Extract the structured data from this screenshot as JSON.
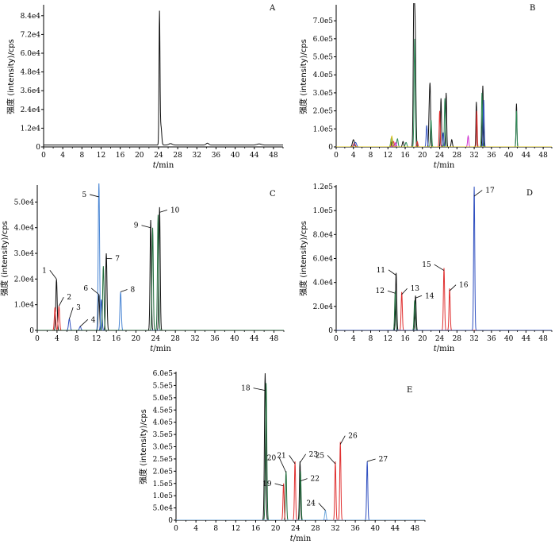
{
  "figure": {
    "ylabel": "强度 (intensity)/cps",
    "xlabel_italic": "t",
    "xlabel_rest": "/min"
  },
  "chart_data": [
    {
      "panel": "A",
      "type": "line",
      "title": "A",
      "xlabel": "t/min",
      "ylabel": "强度 (intensity)/cps",
      "xlim": [
        0,
        50
      ],
      "ylim": [
        0,
        90000
      ],
      "xticks": [
        0,
        4,
        8,
        12,
        16,
        20,
        24,
        28,
        32,
        36,
        40,
        44,
        48
      ],
      "yticks": [
        0,
        12000,
        24000,
        36000,
        48000,
        60000,
        72000,
        84000
      ],
      "ytick_labels": [
        "0",
        "1.2e4",
        "2.4e4",
        "3.6e4",
        "4.8e4",
        "6.0e4",
        "7.2e4",
        "8.4e4"
      ],
      "baseline": 1200,
      "series": [
        {
          "name": "black",
          "color": "#111111",
          "peaks": [
            [
              24.2,
              84000,
              0.22
            ],
            [
              24.5,
              12000,
              0.35
            ],
            [
              26.5,
              900,
              0.8
            ],
            [
              34.2,
              1200,
              0.6
            ],
            [
              45,
              700,
              1.0
            ]
          ]
        }
      ],
      "peak_labels": []
    },
    {
      "panel": "B",
      "type": "line",
      "title": "B",
      "xlabel": "t/min",
      "ylabel": "强度 (intensity)/cps",
      "xlim": [
        0,
        50
      ],
      "ylim": [
        0,
        780000
      ],
      "xticks": [
        0,
        4,
        8,
        12,
        16,
        20,
        24,
        28,
        32,
        36,
        40,
        44,
        48
      ],
      "yticks": [
        0,
        100000,
        200000,
        300000,
        400000,
        500000,
        600000,
        700000
      ],
      "ytick_labels": [
        "0",
        "1.0e5",
        "2.0e5",
        "3.0e5",
        "4.0e5",
        "5.0e5",
        "6.0e5",
        "7.0e5"
      ],
      "baseline": 0,
      "series": [
        {
          "name": "black",
          "color": "#111111",
          "peaks": [
            [
              4.0,
              40000,
              0.5
            ],
            [
              13.0,
              35000,
              0.35
            ],
            [
              15.5,
              30000,
              0.35
            ],
            [
              18.0,
              760000,
              0.3
            ],
            [
              18.3,
              650000,
              0.35
            ],
            [
              21.8,
              260000,
              0.25
            ],
            [
              21.6,
              220000,
              0.3
            ],
            [
              24.3,
              270000,
              0.25
            ],
            [
              25.5,
              300000,
              0.25
            ],
            [
              32.5,
              250000,
              0.22
            ],
            [
              34.0,
              340000,
              0.25
            ],
            [
              41.8,
              240000,
              0.22
            ],
            [
              26.8,
              40000,
              0.3
            ]
          ]
        },
        {
          "name": "green",
          "color": "#2e8b57",
          "peaks": [
            [
              12.8,
              50000,
              0.35
            ],
            [
              14.2,
              45000,
              0.35
            ],
            [
              16.2,
              25000,
              0.4
            ],
            [
              18.2,
              600000,
              0.3
            ],
            [
              22.0,
              150000,
              0.3
            ],
            [
              25.2,
              270000,
              0.25
            ],
            [
              33.8,
              300000,
              0.25
            ],
            [
              41.8,
              200000,
              0.22
            ]
          ]
        },
        {
          "name": "red",
          "color": "#e03030",
          "peaks": [
            [
              4.2,
              20000,
              0.5
            ],
            [
              13.3,
              30000,
              0.35
            ],
            [
              24.0,
              200000,
              0.25
            ],
            [
              32.6,
              200000,
              0.22
            ],
            [
              18.8,
              30000,
              0.3
            ]
          ]
        },
        {
          "name": "blue",
          "color": "#3050c0",
          "peaks": [
            [
              4.5,
              25000,
              0.5
            ],
            [
              21.0,
              120000,
              0.3
            ],
            [
              34.2,
              260000,
              0.25
            ],
            [
              24.8,
              80000,
              0.3
            ]
          ]
        },
        {
          "name": "magenta",
          "color": "#d02fd0",
          "peaks": [
            [
              30.6,
              60000,
              0.3
            ],
            [
              13.8,
              25000,
              0.3
            ]
          ]
        },
        {
          "name": "yellow",
          "color": "#d6c21f",
          "peaks": [
            [
              12.9,
              60000,
              0.35
            ]
          ]
        }
      ],
      "peak_labels": []
    },
    {
      "panel": "C",
      "type": "line",
      "title": "C",
      "xlabel": "t/min",
      "ylabel": "强度 (intensity)/cps",
      "xlim": [
        0,
        50
      ],
      "ylim": [
        0,
        56000
      ],
      "xticks": [
        0,
        4,
        8,
        12,
        16,
        20,
        24,
        28,
        32,
        36,
        40,
        44,
        48
      ],
      "yticks": [
        0,
        10000,
        20000,
        30000,
        40000,
        50000
      ],
      "ytick_labels": [
        "0",
        "1.0e4",
        "2.0e4",
        "3.0e4",
        "4.0e4",
        "5.0e4"
      ],
      "baseline": 0,
      "series": [
        {
          "name": "black",
          "color": "#111111",
          "peaks": [
            [
              3.9,
              20000,
              0.3
            ],
            [
              12.5,
              14000,
              0.3
            ],
            [
              14.0,
              30000,
              0.3
            ],
            [
              23.0,
              43000,
              0.28
            ],
            [
              24.8,
              48000,
              0.28
            ]
          ]
        },
        {
          "name": "red",
          "color": "#e03030",
          "peaks": [
            [
              3.6,
              9000,
              0.3
            ],
            [
              4.4,
              9500,
              0.3
            ]
          ]
        },
        {
          "name": "blue",
          "color": "#3050c0",
          "peaks": [
            [
              6.5,
              4500,
              0.35
            ],
            [
              8.7,
              1500,
              0.35
            ],
            [
              13.0,
              12000,
              0.3
            ]
          ]
        },
        {
          "name": "steelblue",
          "color": "#4a86d4",
          "peaks": [
            [
              12.5,
              58000,
              0.3
            ],
            [
              16.9,
              15000,
              0.3
            ]
          ]
        },
        {
          "name": "darkgreen",
          "color": "#1e6b3a",
          "peaks": [
            [
              13.4,
              25000,
              0.3
            ],
            [
              23.4,
              40000,
              0.28
            ],
            [
              24.5,
              45000,
              0.28
            ]
          ]
        }
      ],
      "peak_labels": [
        {
          "text": "1",
          "x": 3.9,
          "y": 20000,
          "dx": -2.0,
          "dy": 2500
        },
        {
          "text": "2",
          "x": 4.4,
          "y": 9500,
          "dx": 1.6,
          "dy": 2500
        },
        {
          "text": "3",
          "x": 6.5,
          "y": 4500,
          "dx": 1.4,
          "dy": 3500
        },
        {
          "text": "4",
          "x": 8.7,
          "y": 1500,
          "dx": 2.2,
          "dy": 1800
        },
        {
          "text": "5",
          "x": 12.5,
          "y": 52000,
          "dx": -2.5,
          "dy": 0
        },
        {
          "text": "6",
          "x": 12.5,
          "y": 14000,
          "dx": -2.2,
          "dy": 1500
        },
        {
          "text": "7",
          "x": 14.0,
          "y": 28000,
          "dx": 1.8,
          "dy": -1000
        },
        {
          "text": "8",
          "x": 16.9,
          "y": 15000,
          "dx": 2.0,
          "dy": 0
        },
        {
          "text": "9",
          "x": 23.0,
          "y": 40000,
          "dx": -2.5,
          "dy": 0
        },
        {
          "text": "10",
          "x": 24.8,
          "y": 46000,
          "dx": 2.2,
          "dy": 0
        }
      ]
    },
    {
      "panel": "D",
      "type": "line",
      "title": "D",
      "xlabel": "t/min",
      "ylabel": "强度 (intensity)/cps",
      "xlim": [
        0,
        50
      ],
      "ylim": [
        0,
        120000
      ],
      "xticks": [
        0,
        4,
        8,
        12,
        16,
        20,
        24,
        28,
        32,
        36,
        40,
        44,
        48
      ],
      "yticks": [
        0,
        20000,
        40000,
        60000,
        80000,
        100000,
        120000
      ],
      "ytick_labels": [
        "0",
        "2.0e4",
        "4.0e4",
        "6.0e4",
        "8.0e4",
        "1.0e5",
        "1.2e5"
      ],
      "baseline": 0,
      "series": [
        {
          "name": "black",
          "color": "#111111",
          "peaks": [
            [
              13.9,
              48000,
              0.3
            ],
            [
              18.4,
              29000,
              0.3
            ]
          ]
        },
        {
          "name": "darkgreen",
          "color": "#1e6b3a",
          "peaks": [
            [
              13.7,
              33000,
              0.3
            ],
            [
              18.2,
              25000,
              0.3
            ]
          ]
        },
        {
          "name": "red",
          "color": "#e03030",
          "peaks": [
            [
              15.2,
              32000,
              0.3
            ],
            [
              25.0,
              52000,
              0.3
            ],
            [
              26.3,
              35000,
              0.3
            ]
          ]
        },
        {
          "name": "blue",
          "color": "#3050c0",
          "peaks": [
            [
              32.0,
              120000,
              0.28
            ]
          ]
        }
      ],
      "peak_labels": [
        {
          "text": "11",
          "x": 13.9,
          "y": 46000,
          "dx": -2.5,
          "dy": 2500
        },
        {
          "text": "12",
          "x": 13.7,
          "y": 31000,
          "dx": -2.5,
          "dy": 0
        },
        {
          "text": "13",
          "x": 15.2,
          "y": 30000,
          "dx": 2.0,
          "dy": 3000
        },
        {
          "text": "14",
          "x": 18.4,
          "y": 27000,
          "dx": 2.2,
          "dy": 0
        },
        {
          "text": "15",
          "x": 25.0,
          "y": 50000,
          "dx": -3.0,
          "dy": 3000
        },
        {
          "text": "16",
          "x": 26.3,
          "y": 33000,
          "dx": 2.2,
          "dy": 3000
        },
        {
          "text": "17",
          "x": 32.0,
          "y": 112000,
          "dx": 2.6,
          "dy": 3000
        }
      ]
    },
    {
      "panel": "E",
      "type": "line",
      "title": "E",
      "xlabel": "t/min",
      "ylabel": "强度 (intensity)/cps",
      "xlim": [
        0,
        50
      ],
      "ylim": [
        0,
        600000
      ],
      "xticks": [
        0,
        4,
        8,
        12,
        16,
        20,
        24,
        28,
        32,
        36,
        40,
        44,
        48
      ],
      "yticks": [
        0,
        50000,
        100000,
        150000,
        200000,
        250000,
        300000,
        350000,
        400000,
        450000,
        500000,
        550000,
        600000
      ],
      "ytick_labels": [
        "0",
        "5.0e4",
        "1.0e5",
        "1.5e5",
        "2.0e5",
        "2.5e5",
        "3.0e5",
        "3.5e5",
        "4.0e5",
        "4.5e5",
        "5.0e5",
        "5.5e5",
        "6.0e5"
      ],
      "baseline": 0,
      "series": [
        {
          "name": "black",
          "color": "#111111",
          "peaks": [
            [
              17.9,
              600000,
              0.3
            ],
            [
              24.9,
              240000,
              0.25
            ]
          ]
        },
        {
          "name": "darkgreen",
          "color": "#1e6b3a",
          "peaks": [
            [
              18.1,
              560000,
              0.3
            ],
            [
              22.1,
              200000,
              0.25
            ],
            [
              25.0,
              200000,
              0.25
            ]
          ]
        },
        {
          "name": "red",
          "color": "#e03030",
          "peaks": [
            [
              21.6,
              150000,
              0.25
            ],
            [
              23.9,
              240000,
              0.25
            ],
            [
              32.0,
              240000,
              0.25
            ],
            [
              33.0,
              320000,
              0.25
            ]
          ]
        },
        {
          "name": "blue",
          "color": "#3050c0",
          "peaks": [
            [
              38.4,
              240000,
              0.25
            ]
          ]
        },
        {
          "name": "lightblue",
          "color": "#6fa8dc",
          "peaks": [
            [
              30.0,
              40000,
              0.3
            ]
          ]
        }
      ],
      "peak_labels": [
        {
          "text": "18",
          "x": 17.9,
          "y": 530000,
          "dx": -3.0,
          "dy": 0
        },
        {
          "text": "19",
          "x": 21.6,
          "y": 140000,
          "dx": -2.4,
          "dy": 0
        },
        {
          "text": "20",
          "x": 22.1,
          "y": 195000,
          "dx": -2.0,
          "dy": 50000
        },
        {
          "text": "21",
          "x": 23.9,
          "y": 230000,
          "dx": -1.8,
          "dy": 25000
        },
        {
          "text": "22",
          "x": 25.0,
          "y": 160000,
          "dx": 2.0,
          "dy": 0
        },
        {
          "text": "23",
          "x": 24.9,
          "y": 235000,
          "dx": 1.8,
          "dy": 25000
        },
        {
          "text": "24",
          "x": 30.0,
          "y": 40000,
          "dx": -2.0,
          "dy": 20000
        },
        {
          "text": "25",
          "x": 32.0,
          "y": 230000,
          "dx": -2.2,
          "dy": 25000
        },
        {
          "text": "26",
          "x": 33.0,
          "y": 310000,
          "dx": 1.6,
          "dy": 25000
        },
        {
          "text": "27",
          "x": 38.4,
          "y": 240000,
          "dx": 2.3,
          "dy": 0
        }
      ]
    }
  ]
}
